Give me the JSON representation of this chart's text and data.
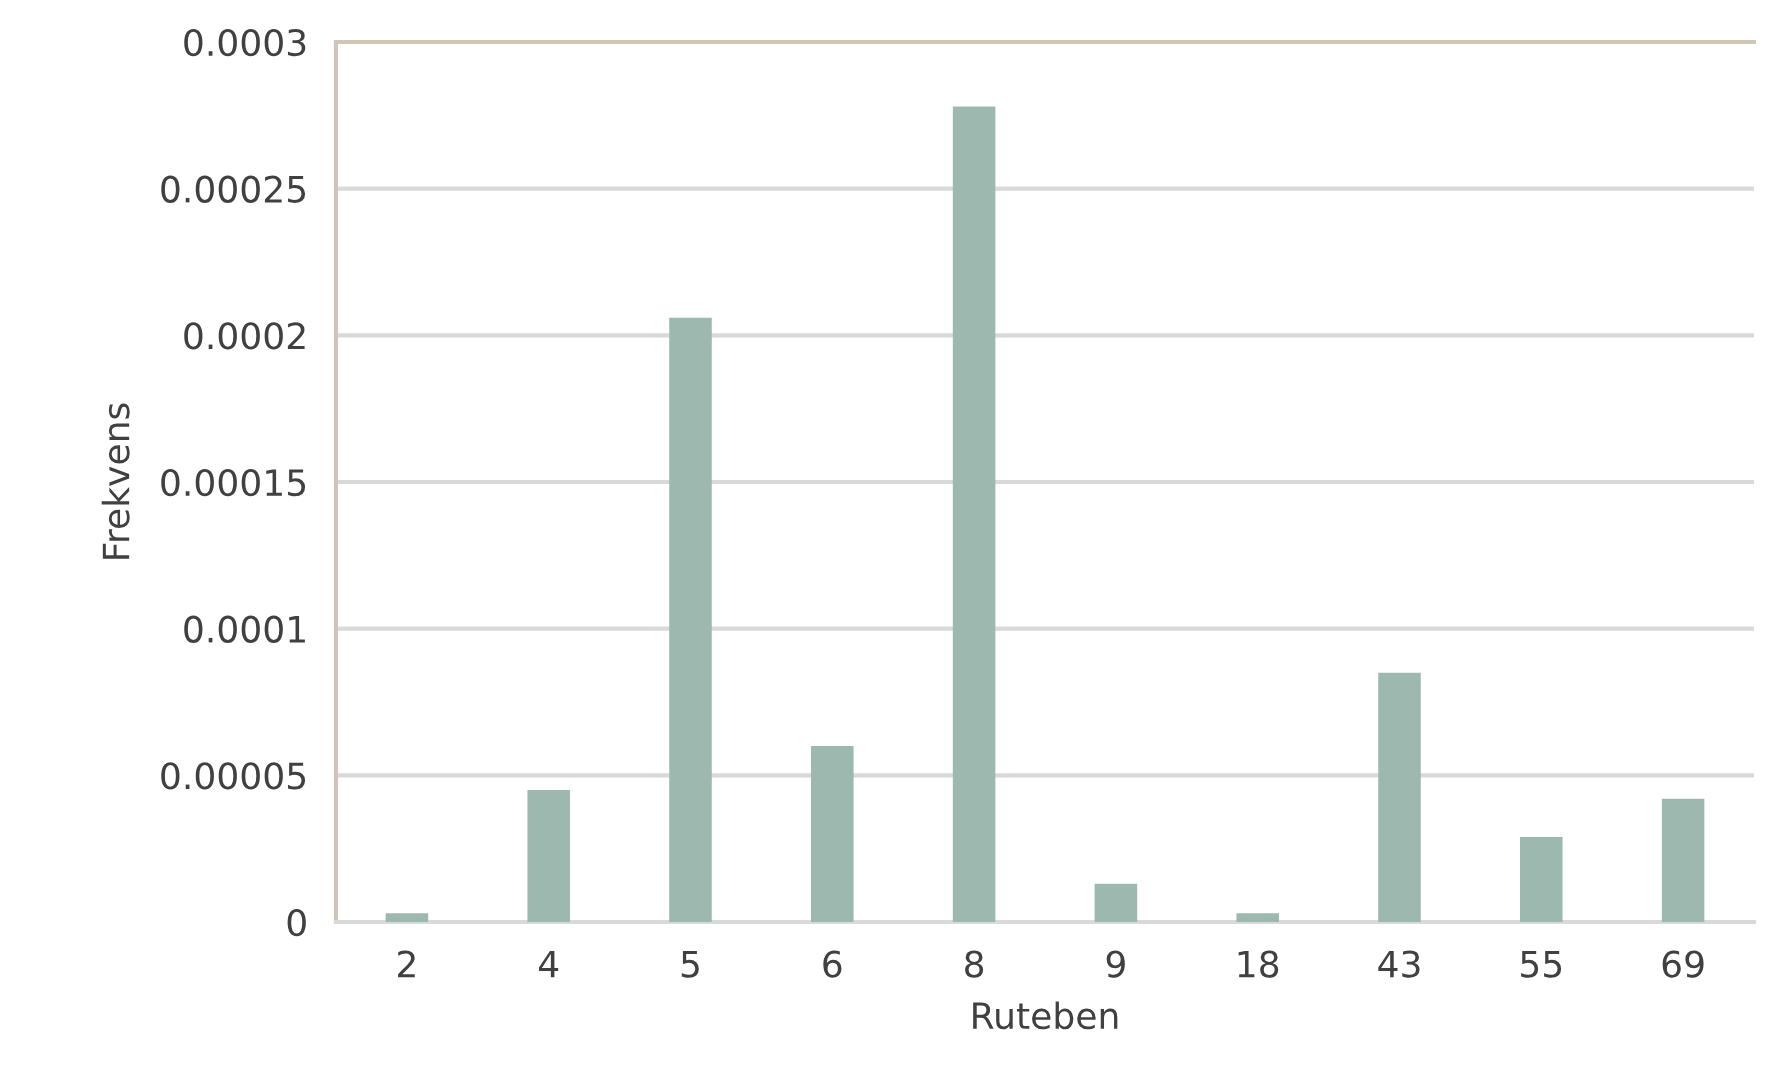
{
  "chart_data": {
    "type": "bar",
    "xlabel": "Ruteben",
    "ylabel": "Frekvens",
    "categories": [
      "2",
      "4",
      "5",
      "6",
      "8",
      "9",
      "18",
      "43",
      "55",
      "69"
    ],
    "values": [
      3e-06,
      4.5e-05,
      0.000206,
      6e-05,
      0.000278,
      1.3e-05,
      3e-06,
      8.5e-05,
      2.9e-05,
      4.2e-05
    ],
    "color": "#9db8ae",
    "ylim": [
      0,
      0.0003
    ],
    "yticks": [
      0,
      {
        "value": 5e-05,
        "label": "0.00005"
      },
      0.0001,
      0.00015,
      0.0002,
      0.00025,
      0.0003
    ],
    "grid": "y"
  }
}
